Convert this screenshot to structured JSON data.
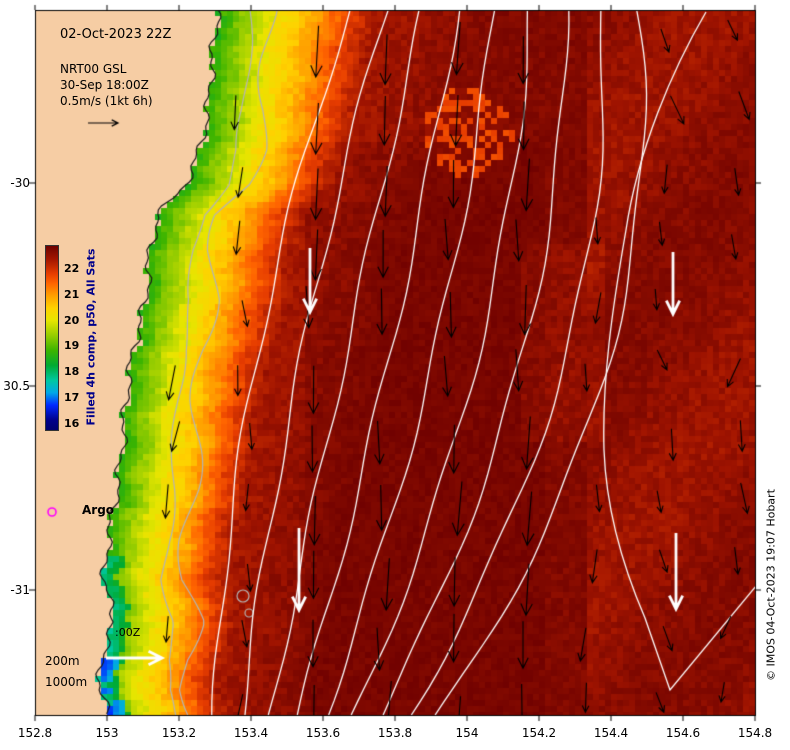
{
  "header": {
    "datetime": "02-Oct-2023 22Z"
  },
  "legend": {
    "source": "NRT00 GSL",
    "reference_time": "30-Sep 18:00Z",
    "velocity_scale": "0.5m/s (1kt 6h)"
  },
  "colorbar": {
    "label": "Filled 4h comp, p50, All Sats",
    "ticks": [
      "22",
      "21",
      "20",
      "19",
      "18",
      "17",
      "16"
    ]
  },
  "annotations": {
    "argo": "Argo",
    "time": ":00Z",
    "depth_200": "200m",
    "depth_1000": "1000m"
  },
  "credit": "© IMOS 04-Oct-2023 19:07 Hobart",
  "axes": {
    "x_ticks": [
      "152.8",
      "153",
      "153.2",
      "153.4",
      "153.6",
      "153.8",
      "154",
      "154.2",
      "154.4",
      "154.6",
      "154.8"
    ],
    "y_ticks": [
      "-30",
      "30.5",
      "-31"
    ]
  },
  "colors": {
    "land": "#f6cda4",
    "coastline": "#1a1a1a",
    "contour_white": "#ffffff",
    "contour_gray": "#b4b4b4",
    "arrow_black": "#000000",
    "arrow_white": "#ffffff",
    "argo_marker": "#ff00ff",
    "colorbar_label": "#00008b",
    "sst_stops": [
      {
        "t": 15.6,
        "c": "#00006e"
      },
      {
        "t": 16.0,
        "c": "#00008b"
      },
      {
        "t": 16.6,
        "c": "#0028ff"
      },
      {
        "t": 17.1,
        "c": "#00a8e6"
      },
      {
        "t": 17.6,
        "c": "#00c8a0"
      },
      {
        "t": 18.2,
        "c": "#00aa32"
      },
      {
        "t": 18.8,
        "c": "#3cb400"
      },
      {
        "t": 19.4,
        "c": "#96cd00"
      },
      {
        "t": 20.0,
        "c": "#e6e600"
      },
      {
        "t": 20.5,
        "c": "#ffd200"
      },
      {
        "t": 21.0,
        "c": "#ffa000"
      },
      {
        "t": 21.5,
        "c": "#ff6400"
      },
      {
        "t": 21.9,
        "c": "#e63c00"
      },
      {
        "t": 22.2,
        "c": "#c02800"
      },
      {
        "t": 22.5,
        "c": "#a01400"
      },
      {
        "t": 22.8,
        "c": "#820a00"
      },
      {
        "t": 23.2,
        "c": "#6e0000"
      }
    ]
  }
}
